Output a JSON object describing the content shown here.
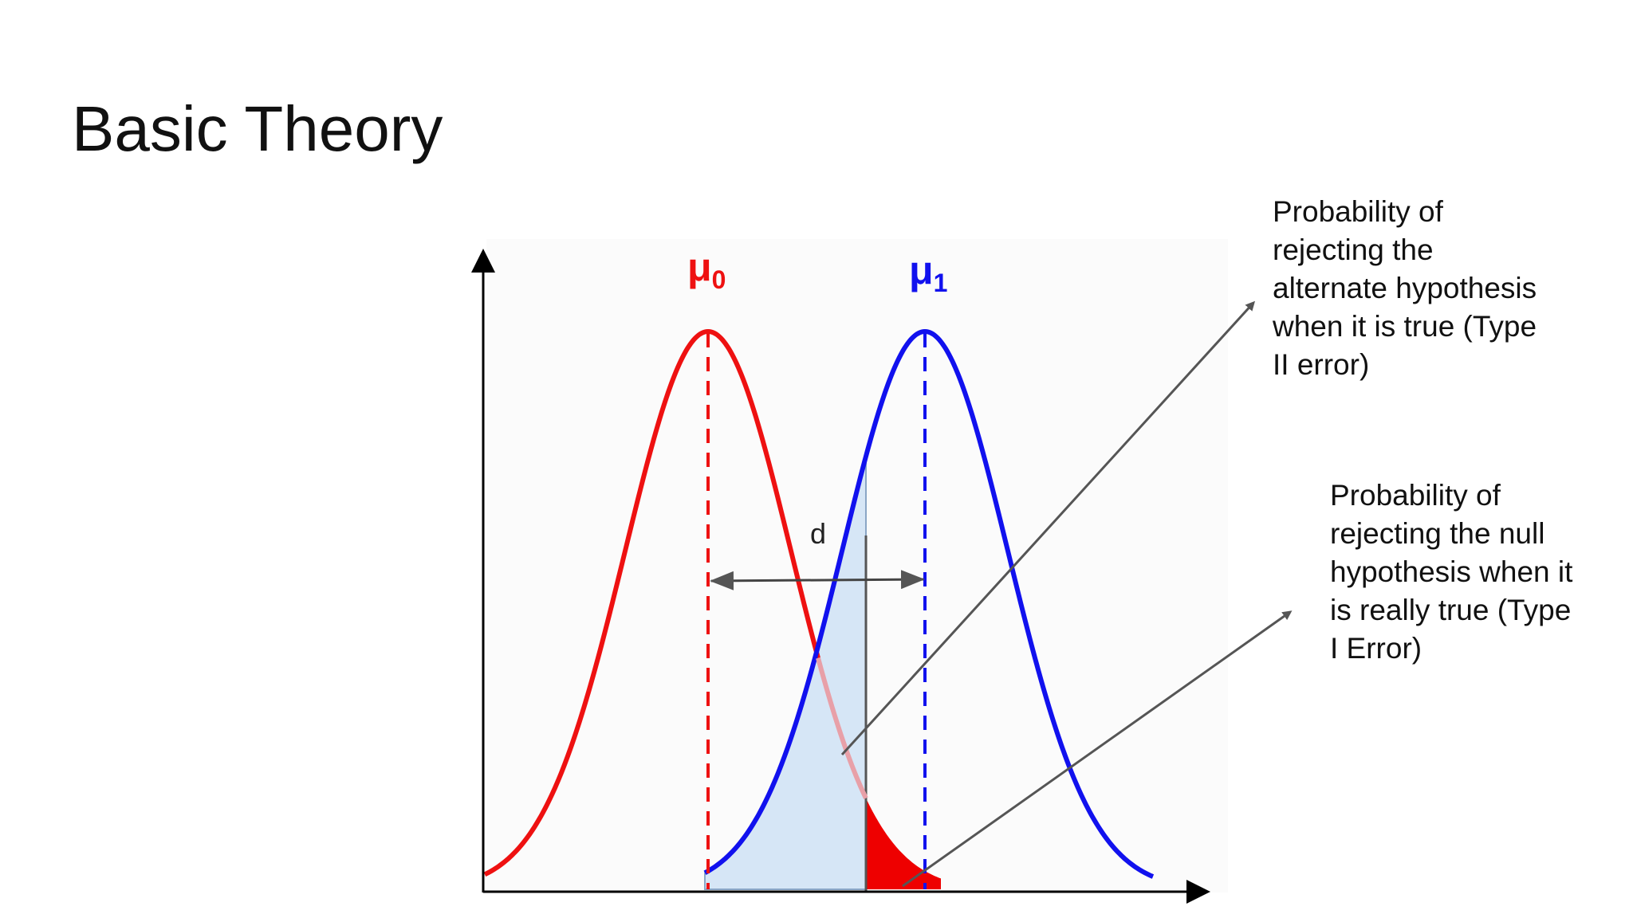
{
  "title": "Basic Theory",
  "labels": {
    "mu0_symbol": "μ",
    "mu0_subscript": "0",
    "mu1_symbol": "μ",
    "mu1_subscript": "1",
    "distance": "d"
  },
  "annotations": {
    "type2": "Probability of\nrejecting the\nalternate hypothesis\nwhen it is true (Type\nII error)",
    "type1": "Probability of\nrejecting the null\nhypothesis when it\nis really true (Type\nI Error)"
  },
  "colors": {
    "null_curve": "#ee1111",
    "alt_curve": "#1111ee",
    "type2_region": "#d6e6f6",
    "type1_region": "#ee0000",
    "axes": "#000000",
    "callout_arrows": "#555555"
  }
}
